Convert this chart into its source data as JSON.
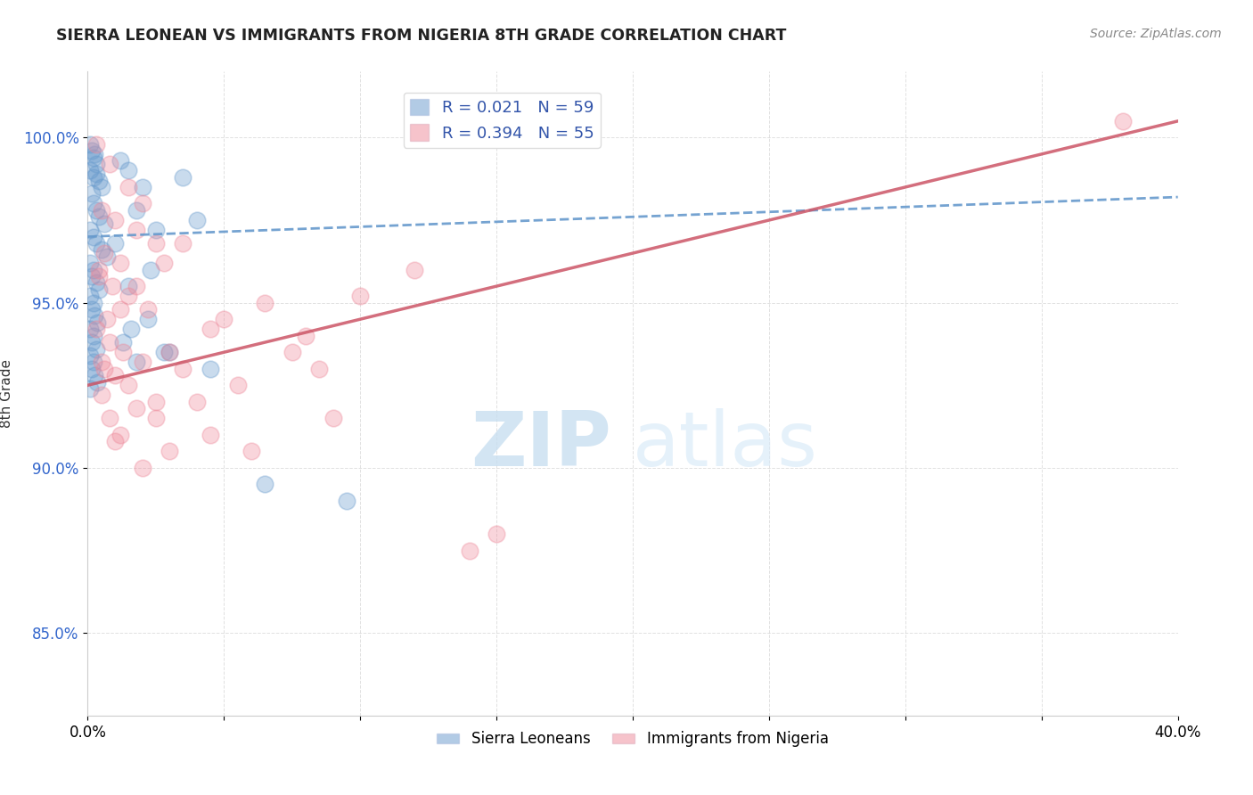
{
  "title": "SIERRA LEONEAN VS IMMIGRANTS FROM NIGERIA 8TH GRADE CORRELATION CHART",
  "source_text": "Source: ZipAtlas.com",
  "ylabel": "8th Grade",
  "xlim": [
    0.0,
    40.0
  ],
  "ylim": [
    82.5,
    102.0
  ],
  "xticks": [
    0.0,
    5.0,
    10.0,
    15.0,
    20.0,
    25.0,
    30.0,
    35.0,
    40.0
  ],
  "xticklabels": [
    "0.0%",
    "",
    "",
    "",
    "",
    "",
    "",
    "",
    "40.0%"
  ],
  "yticks": [
    85.0,
    90.0,
    95.0,
    100.0
  ],
  "yticklabels": [
    "85.0%",
    "90.0%",
    "95.0%",
    "100.0%"
  ],
  "grid_color": "#cccccc",
  "background_color": "#ffffff",
  "blue_color": "#6699cc",
  "pink_color": "#ee8899",
  "pink_line_color": "#cc5566",
  "blue_R": 0.021,
  "blue_N": 59,
  "pink_R": 0.394,
  "pink_N": 55,
  "watermark_zip": "ZIP",
  "watermark_atlas": "atlas",
  "legend_labels": [
    "Sierra Leoneans",
    "Immigrants from Nigeria"
  ],
  "blue_scatter": [
    [
      0.1,
      99.8
    ],
    [
      0.15,
      99.6
    ],
    [
      0.2,
      99.4
    ],
    [
      0.25,
      99.5
    ],
    [
      0.3,
      99.2
    ],
    [
      0.1,
      99.0
    ],
    [
      0.2,
      98.8
    ],
    [
      0.3,
      98.9
    ],
    [
      0.4,
      98.7
    ],
    [
      0.5,
      98.5
    ],
    [
      0.15,
      98.3
    ],
    [
      0.2,
      98.0
    ],
    [
      0.3,
      97.8
    ],
    [
      0.4,
      97.6
    ],
    [
      0.6,
      97.4
    ],
    [
      0.1,
      97.2
    ],
    [
      0.2,
      97.0
    ],
    [
      0.3,
      96.8
    ],
    [
      0.5,
      96.6
    ],
    [
      0.7,
      96.4
    ],
    [
      0.1,
      96.2
    ],
    [
      0.2,
      96.0
    ],
    [
      0.15,
      95.8
    ],
    [
      0.3,
      95.6
    ],
    [
      0.4,
      95.4
    ],
    [
      0.1,
      95.2
    ],
    [
      0.2,
      95.0
    ],
    [
      0.15,
      94.8
    ],
    [
      0.25,
      94.6
    ],
    [
      0.35,
      94.4
    ],
    [
      0.1,
      94.2
    ],
    [
      0.2,
      94.0
    ],
    [
      0.15,
      93.8
    ],
    [
      0.3,
      93.6
    ],
    [
      0.1,
      93.4
    ],
    [
      0.2,
      93.2
    ],
    [
      0.15,
      93.0
    ],
    [
      0.25,
      92.8
    ],
    [
      0.35,
      92.6
    ],
    [
      0.1,
      92.4
    ],
    [
      1.2,
      99.3
    ],
    [
      1.5,
      99.0
    ],
    [
      2.0,
      98.5
    ],
    [
      1.8,
      97.8
    ],
    [
      2.5,
      97.2
    ],
    [
      3.5,
      98.8
    ],
    [
      4.0,
      97.5
    ],
    [
      1.0,
      96.8
    ],
    [
      1.5,
      95.5
    ],
    [
      2.2,
      94.5
    ],
    [
      3.0,
      93.5
    ],
    [
      1.8,
      93.2
    ],
    [
      6.5,
      89.5
    ],
    [
      4.5,
      93.0
    ],
    [
      9.5,
      89.0
    ],
    [
      2.8,
      93.5
    ],
    [
      1.3,
      93.8
    ],
    [
      1.6,
      94.2
    ],
    [
      2.3,
      96.0
    ]
  ],
  "pink_scatter": [
    [
      0.3,
      99.8
    ],
    [
      0.8,
      99.2
    ],
    [
      1.5,
      98.5
    ],
    [
      2.0,
      98.0
    ],
    [
      0.5,
      97.8
    ],
    [
      1.0,
      97.5
    ],
    [
      1.8,
      97.2
    ],
    [
      2.5,
      96.8
    ],
    [
      0.6,
      96.5
    ],
    [
      1.2,
      96.2
    ],
    [
      0.4,
      95.8
    ],
    [
      0.9,
      95.5
    ],
    [
      1.5,
      95.2
    ],
    [
      2.2,
      94.8
    ],
    [
      0.7,
      94.5
    ],
    [
      0.3,
      94.2
    ],
    [
      0.8,
      93.8
    ],
    [
      1.3,
      93.5
    ],
    [
      0.5,
      93.2
    ],
    [
      1.0,
      92.8
    ],
    [
      1.8,
      95.5
    ],
    [
      2.8,
      96.2
    ],
    [
      3.5,
      96.8
    ],
    [
      0.4,
      96.0
    ],
    [
      1.2,
      94.8
    ],
    [
      0.6,
      93.0
    ],
    [
      1.5,
      92.5
    ],
    [
      2.5,
      92.0
    ],
    [
      0.8,
      91.5
    ],
    [
      1.2,
      91.0
    ],
    [
      3.0,
      93.5
    ],
    [
      4.5,
      94.2
    ],
    [
      2.0,
      93.2
    ],
    [
      0.5,
      92.2
    ],
    [
      1.8,
      91.8
    ],
    [
      5.0,
      94.5
    ],
    [
      3.5,
      93.0
    ],
    [
      2.5,
      91.5
    ],
    [
      1.0,
      90.8
    ],
    [
      6.5,
      95.0
    ],
    [
      4.0,
      92.0
    ],
    [
      7.5,
      93.5
    ],
    [
      8.0,
      94.0
    ],
    [
      3.0,
      90.5
    ],
    [
      5.5,
      92.5
    ],
    [
      2.0,
      90.0
    ],
    [
      4.5,
      91.0
    ],
    [
      10.0,
      95.2
    ],
    [
      6.0,
      90.5
    ],
    [
      12.0,
      96.0
    ],
    [
      8.5,
      93.0
    ],
    [
      9.0,
      91.5
    ],
    [
      14.0,
      87.5
    ],
    [
      15.0,
      88.0
    ],
    [
      38.0,
      100.5
    ]
  ],
  "blue_line": [
    [
      0.0,
      97.0
    ],
    [
      40.0,
      98.2
    ]
  ],
  "pink_line": [
    [
      0.0,
      92.5
    ],
    [
      40.0,
      100.5
    ]
  ]
}
